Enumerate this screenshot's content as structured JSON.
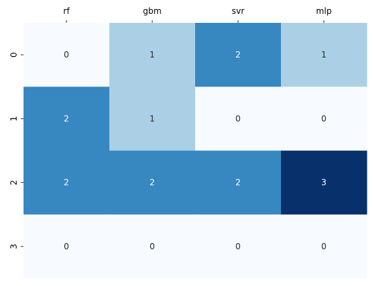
{
  "chart_data": {
    "type": "heatmap",
    "title": "",
    "xlabel": "",
    "ylabel": "",
    "x_axis_position": "top",
    "columns": [
      "rf",
      "gbm",
      "svr",
      "mlp"
    ],
    "rows": [
      "0",
      "1",
      "2",
      "3"
    ],
    "values": [
      [
        0,
        1,
        2,
        1
      ],
      [
        2,
        1,
        0,
        0
      ],
      [
        2,
        2,
        2,
        3
      ],
      [
        0,
        0,
        0,
        0
      ]
    ],
    "annotated": true,
    "colorbar": false,
    "grid": false,
    "colormap": "Blues",
    "color_scale": [
      {
        "value": 0,
        "color": "#f7fbff"
      },
      {
        "value": 1,
        "color": "#abd0e6"
      },
      {
        "value": 2,
        "color": "#3787c0"
      },
      {
        "value": 3,
        "color": "#08306b"
      }
    ],
    "annotation_colors": {
      "light": "#ffffff",
      "dark": "#262626"
    }
  }
}
